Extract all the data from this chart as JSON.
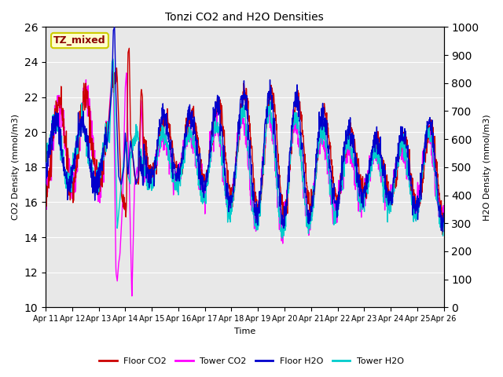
{
  "title": "Tonzi CO2 and H2O Densities",
  "xlabel": "Time",
  "ylabel_left": "CO2 Density (mmol/m3)",
  "ylabel_right": "H2O Density (mmol/m3)",
  "annotation": "TZ_mixed",
  "annotation_color": "#8B0000",
  "annotation_bg": "#FFFFCC",
  "annotation_border": "#CCCC00",
  "ylim_left": [
    10,
    26
  ],
  "ylim_right": [
    0,
    1000
  ],
  "yticks_left": [
    10,
    12,
    14,
    16,
    18,
    20,
    22,
    24,
    26
  ],
  "yticks_right": [
    0,
    100,
    200,
    300,
    400,
    500,
    600,
    700,
    800,
    900,
    1000
  ],
  "colors": {
    "floor_co2": "#CC0000",
    "tower_co2": "#FF00FF",
    "floor_h2o": "#0000CC",
    "tower_h2o": "#00CCCC"
  },
  "legend_labels": [
    "Floor CO2",
    "Tower CO2",
    "Floor H2O",
    "Tower H2O"
  ],
  "background_color": "#E8E8E8",
  "grid_color": "#FFFFFF",
  "fig_bg": "#FFFFFF",
  "linewidth": 1.0,
  "figsize": [
    6.4,
    4.8
  ],
  "dpi": 100
}
